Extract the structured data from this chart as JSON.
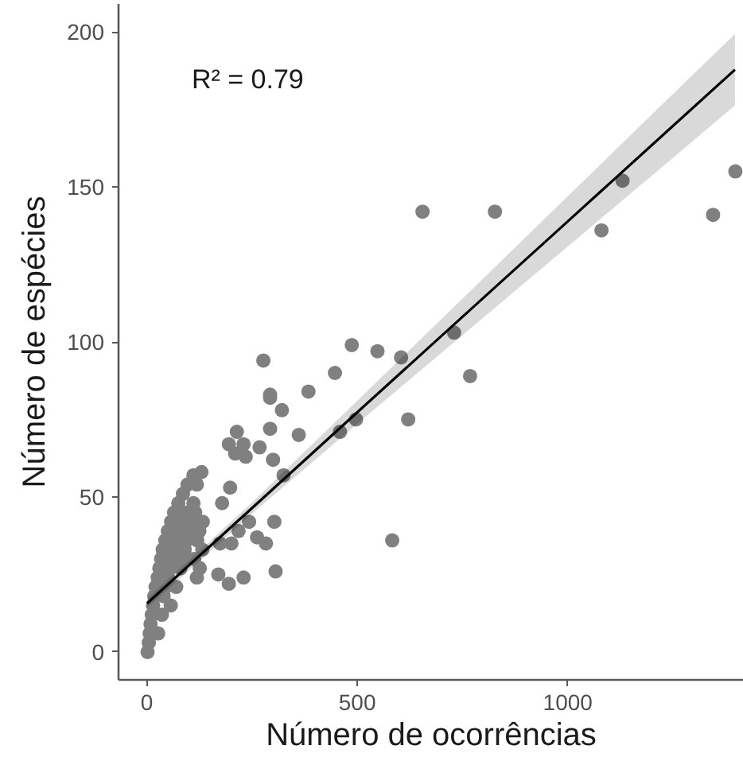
{
  "chart_data": {
    "type": "scatter",
    "xlabel": "Número de ocorrências",
    "ylabel": "Número de espécies",
    "xlim": [
      -67,
      1418
    ],
    "ylim": [
      -9,
      209
    ],
    "xticks": [
      0,
      500,
      1000
    ],
    "yticks": [
      0,
      50,
      100,
      150,
      200
    ],
    "marker": "circle",
    "annotations": [
      "R² = 0.79"
    ],
    "series": [
      {
        "color": "#808080",
        "x": [
          655,
          827,
          1130,
          1080,
          1345,
          1398,
          730,
          768,
          487,
          548,
          604,
          277,
          447,
          384,
          293,
          293,
          321,
          621,
          497,
          293,
          214,
          459,
          361,
          195,
          230,
          268,
          210,
          235,
          300,
          325,
          198,
          179,
          243,
          303,
          218,
          262,
          283,
          174,
          201,
          583,
          170,
          195,
          230,
          306,
          2,
          5,
          7,
          27,
          9,
          12,
          36,
          15,
          57,
          18,
          40,
          21,
          45,
          70,
          26,
          50,
          119,
          30,
          55,
          80,
          126,
          34,
          60,
          88,
          113,
          38,
          63,
          90,
          132,
          44,
          69,
          95,
          120,
          50,
          76,
          101,
          125,
          58,
          82,
          108,
          133,
          65,
          90,
          115,
          75,
          111,
          86,
          97,
          119,
          111,
          130
        ],
        "values": [
          142,
          142,
          152,
          136,
          141,
          155,
          103,
          89,
          99,
          97,
          95,
          94,
          90,
          84,
          83,
          82,
          78,
          75,
          75,
          72,
          71,
          71,
          70,
          67,
          67,
          66,
          64,
          63,
          62,
          57,
          53,
          48,
          42,
          42,
          39,
          37,
          35,
          35,
          35,
          36,
          25,
          22,
          24,
          26,
          0,
          3,
          6,
          6,
          9,
          12,
          12,
          15,
          15,
          18,
          18,
          21,
          21,
          21,
          24,
          24,
          24,
          27,
          27,
          27,
          27,
          30,
          30,
          30,
          30,
          33,
          33,
          33,
          33,
          36,
          36,
          36,
          36,
          39,
          39,
          39,
          39,
          42,
          42,
          42,
          42,
          45,
          45,
          45,
          48,
          48,
          51,
          54,
          54,
          57,
          58
        ]
      },
      {
        "type": "line",
        "color": "#000000",
        "marker": "none",
        "x": [
          1,
          250,
          500,
          750,
          1000,
          1250,
          1397
        ],
        "values": [
          15.7,
          46.4,
          77.3,
          108.1,
          138.9,
          169.7,
          187.8
        ],
        "lower": [
          14.2,
          44.6,
          73.6,
          102.2,
          130.8,
          159.4,
          176.3
        ],
        "upper": [
          17.2,
          48.2,
          81.0,
          114.0,
          147.0,
          180.0,
          199.3
        ]
      }
    ]
  }
}
